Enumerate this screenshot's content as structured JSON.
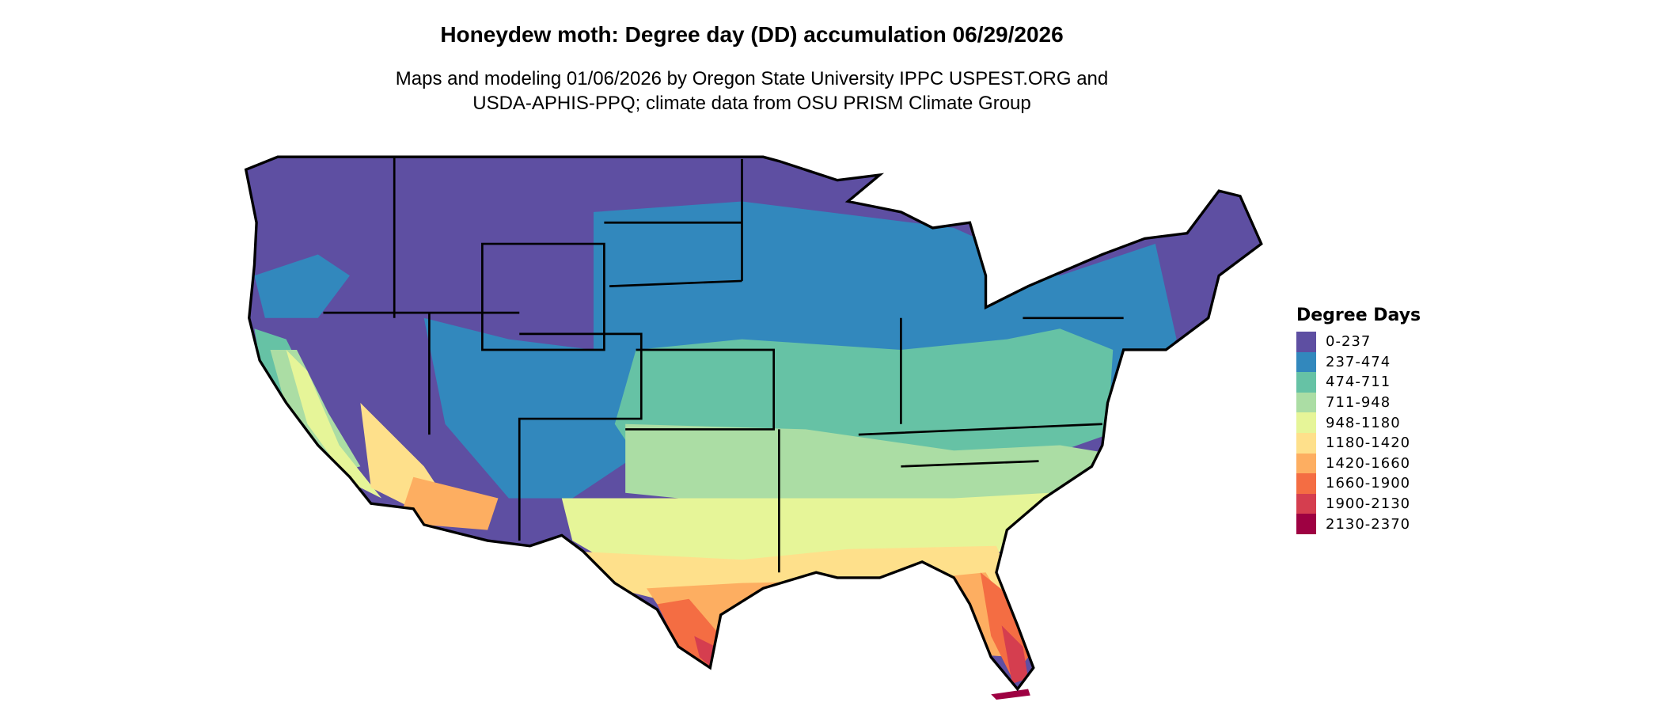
{
  "title": "Honeydew moth: Degree day (DD) accumulation 06/29/2026",
  "subtitle_line1": "Maps and modeling 01/06/2026 by Oregon State University IPPC USPEST.ORG and",
  "subtitle_line2": "USDA-APHIS-PPQ; climate data from OSU PRISM Climate Group",
  "legend": {
    "title": "Degree Days",
    "items": [
      {
        "label": "0-237",
        "color": "#5E4FA2"
      },
      {
        "label": "237-474",
        "color": "#3288BD"
      },
      {
        "label": "474-711",
        "color": "#66C2A5"
      },
      {
        "label": "711-948",
        "color": "#ABDDA4"
      },
      {
        "label": "948-1180",
        "color": "#E6F598"
      },
      {
        "label": "1180-1420",
        "color": "#FEE08B"
      },
      {
        "label": "1420-1660",
        "color": "#FDAE61"
      },
      {
        "label": "1660-1900",
        "color": "#F46D43"
      },
      {
        "label": "1900-2130",
        "color": "#D53E4F"
      },
      {
        "label": "2130-2370",
        "color": "#9E0142"
      }
    ]
  }
}
